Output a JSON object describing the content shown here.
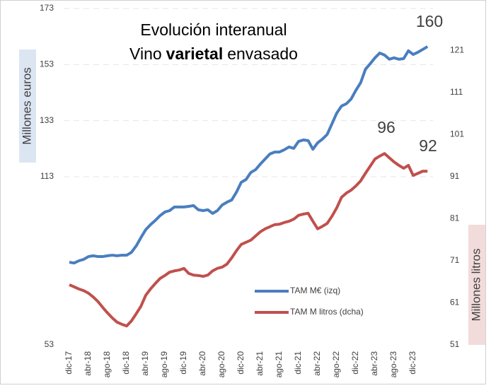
{
  "chart_data": {
    "type": "line",
    "title": "Evolución interanual",
    "subtitle": {
      "before": "Vino",
      "bold": "varietal",
      "after": "envasado"
    },
    "ylabel": "Millones euros",
    "y2label": "Millones litros",
    "categories": [
      "dic-17",
      null,
      null,
      null,
      "abr-18",
      null,
      null,
      null,
      "ago-18",
      null,
      null,
      null,
      "dic-18",
      null,
      null,
      null,
      "abr-19",
      null,
      null,
      null,
      "ago-19",
      null,
      null,
      null,
      "dic-19",
      null,
      null,
      null,
      "abr-20",
      null,
      null,
      null,
      "ago-20",
      null,
      null,
      null,
      "dic-20",
      null,
      null,
      null,
      "abr-21",
      null,
      null,
      null,
      "ago-21",
      null,
      null,
      null,
      "dic-21",
      null,
      null,
      null,
      "abr-22",
      null,
      null,
      null,
      "ago-22",
      null,
      null,
      null,
      "dic-22",
      null,
      null,
      null,
      "abr-23",
      null,
      null,
      null,
      "ago-23",
      null,
      null,
      null,
      "dic-23",
      null,
      null,
      null
    ],
    "series": [
      {
        "name": "TAM M€ (izq)",
        "color": "#4a7ebf",
        "axis": "y",
        "values": [
          82.5,
          82.2,
          83.0,
          83.5,
          84.5,
          84.8,
          84.5,
          84.5,
          84.8,
          85.0,
          84.8,
          85.0,
          85.0,
          86.0,
          88.3,
          91.3,
          94.1,
          95.9,
          97.4,
          99.1,
          100.4,
          100.9,
          102.2,
          102.2,
          102.2,
          102.4,
          102.7,
          101.2,
          100.9,
          101.2,
          99.9,
          100.9,
          102.9,
          103.9,
          104.7,
          107.5,
          111.0,
          112.0,
          114.5,
          115.5,
          117.5,
          119.3,
          121.1,
          121.8,
          121.8,
          122.6,
          123.6,
          123.1,
          125.6,
          126.1,
          125.9,
          122.8,
          125.1,
          126.4,
          128.1,
          131.9,
          135.7,
          138.2,
          139.0,
          140.7,
          143.8,
          146.5,
          151.3,
          153.3,
          155.4,
          157.1,
          156.4,
          154.9,
          155.4,
          154.9,
          155.1,
          157.9,
          156.6,
          157.4,
          158.4,
          159.4
        ]
      },
      {
        "name": "TAM M litros (dcha)",
        "color": "#c0504d",
        "axis": "y2",
        "values": [
          65.3,
          64.8,
          64.3,
          63.9,
          63.3,
          62.4,
          61.3,
          59.9,
          58.6,
          57.4,
          56.4,
          55.9,
          55.5,
          56.7,
          58.4,
          60.2,
          62.8,
          64.3,
          65.6,
          66.8,
          67.5,
          68.3,
          68.6,
          68.8,
          69.2,
          68.0,
          67.6,
          67.5,
          67.3,
          67.6,
          68.6,
          69.2,
          69.5,
          70.2,
          71.7,
          73.4,
          74.9,
          75.4,
          75.9,
          76.9,
          77.9,
          78.6,
          79.1,
          79.6,
          79.7,
          80.1,
          80.4,
          80.9,
          81.8,
          82.1,
          82.3,
          80.4,
          78.6,
          79.2,
          79.9,
          81.6,
          83.6,
          86.1,
          87.1,
          87.8,
          88.8,
          90.0,
          91.8,
          93.5,
          95.2,
          95.9,
          96.5,
          95.5,
          94.5,
          93.7,
          93.0,
          93.7,
          91.3,
          91.8,
          92.3,
          92.3
        ]
      }
    ],
    "annotations": [
      "160",
      "96",
      "92"
    ],
    "ylim": [
      53,
      173
    ],
    "yticks": [
      53,
      113,
      133,
      153,
      173
    ],
    "y2lim": [
      51,
      131
    ],
    "y2ticks": [
      51,
      61,
      71,
      81,
      91,
      101,
      111,
      121
    ],
    "grid": true,
    "legend": "lower right"
  }
}
